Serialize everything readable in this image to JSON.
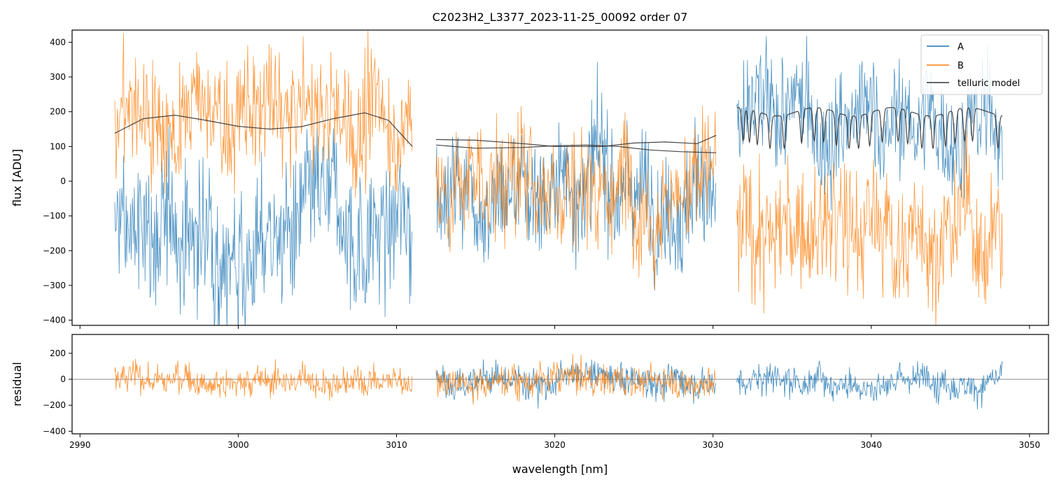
{
  "colors": {
    "A": "#1f77b4",
    "B": "#ff7f0e",
    "telluric": "#333333",
    "zero_line": "#444444"
  },
  "chart_data": {
    "type": "line",
    "title": "C2023H2_L3377_2023-11-25_00092  order 07",
    "xlabel": "wavelength [nm]",
    "xlim": [
      2989.5,
      3051.2
    ],
    "x_ticks": [
      2990,
      3000,
      3010,
      3020,
      3030,
      3040,
      3050
    ],
    "segments_nm": [
      [
        2992.2,
        3011.0
      ],
      [
        3012.5,
        3030.2
      ],
      [
        3031.5,
        3048.3
      ]
    ],
    "top_panel": {
      "ylabel": "flux [ADU]",
      "ylim": [
        -415,
        435
      ],
      "y_ticks": [
        -400,
        -300,
        -200,
        -100,
        0,
        100,
        200,
        300,
        400
      ],
      "series": [
        {
          "name": "A",
          "color": "#1f77b4",
          "segment_means": [
            -150,
            0,
            160
          ],
          "segment_spread": [
            200,
            170,
            160
          ]
        },
        {
          "name": "B",
          "color": "#ff7f0e",
          "segment_means": [
            180,
            10,
            -150
          ],
          "segment_spread": [
            170,
            170,
            180
          ]
        }
      ],
      "telluric_model_points": [
        [
          [
            2992.2,
            138
          ],
          [
            2994,
            180
          ],
          [
            2996,
            190
          ],
          [
            2998,
            175
          ],
          [
            3000,
            158
          ],
          [
            3002,
            150
          ],
          [
            3004,
            157
          ],
          [
            3006,
            180
          ],
          [
            3008,
            197
          ],
          [
            3009.5,
            175
          ],
          [
            3011.0,
            100
          ]
        ],
        [
          [
            3012.5,
            104
          ],
          [
            3015,
            95
          ],
          [
            3018,
            97
          ],
          [
            3020,
            102
          ],
          [
            3022,
            104
          ],
          [
            3024,
            100
          ],
          [
            3026,
            90
          ],
          [
            3028,
            85
          ],
          [
            3030.2,
            82
          ]
        ],
        [
          [
            3012.5,
            120
          ],
          [
            3015,
            118
          ],
          [
            3018,
            108
          ],
          [
            3020,
            100
          ],
          [
            3023,
            100
          ],
          [
            3025,
            110
          ],
          [
            3027,
            113
          ],
          [
            3029,
            108
          ],
          [
            3030.2,
            132
          ]
        ]
      ],
      "telluric_comb": {
        "range": [
          3031.5,
          3048.3
        ],
        "baseline": 200,
        "dip_depth": 95,
        "dips": [
          3031.9,
          3032.3,
          3032.8,
          3033.6,
          3034.5,
          3035.6,
          3036.4,
          3037.0,
          3037.8,
          3038.6,
          3039.2,
          3039.9,
          3040.7,
          3041.7,
          3042.3,
          3043.2,
          3043.9,
          3044.7,
          3045.3,
          3045.9,
          3046.4,
          3048.0
        ]
      }
    },
    "bottom_panel": {
      "ylabel": "residual",
      "ylim": [
        -420,
        345
      ],
      "y_ticks": [
        -400,
        -200,
        0,
        200
      ],
      "series": [
        {
          "name": "A",
          "color": "#1f77b4",
          "segments": [
            1,
            2
          ],
          "mean": 0,
          "spread": 120
        },
        {
          "name": "B",
          "color": "#ff7f0e",
          "segments": [
            0,
            1
          ],
          "mean": 0,
          "spread": 115
        }
      ]
    },
    "legend": {
      "placement": "top-right",
      "entries": [
        "A",
        "B",
        "telluric model"
      ]
    }
  }
}
